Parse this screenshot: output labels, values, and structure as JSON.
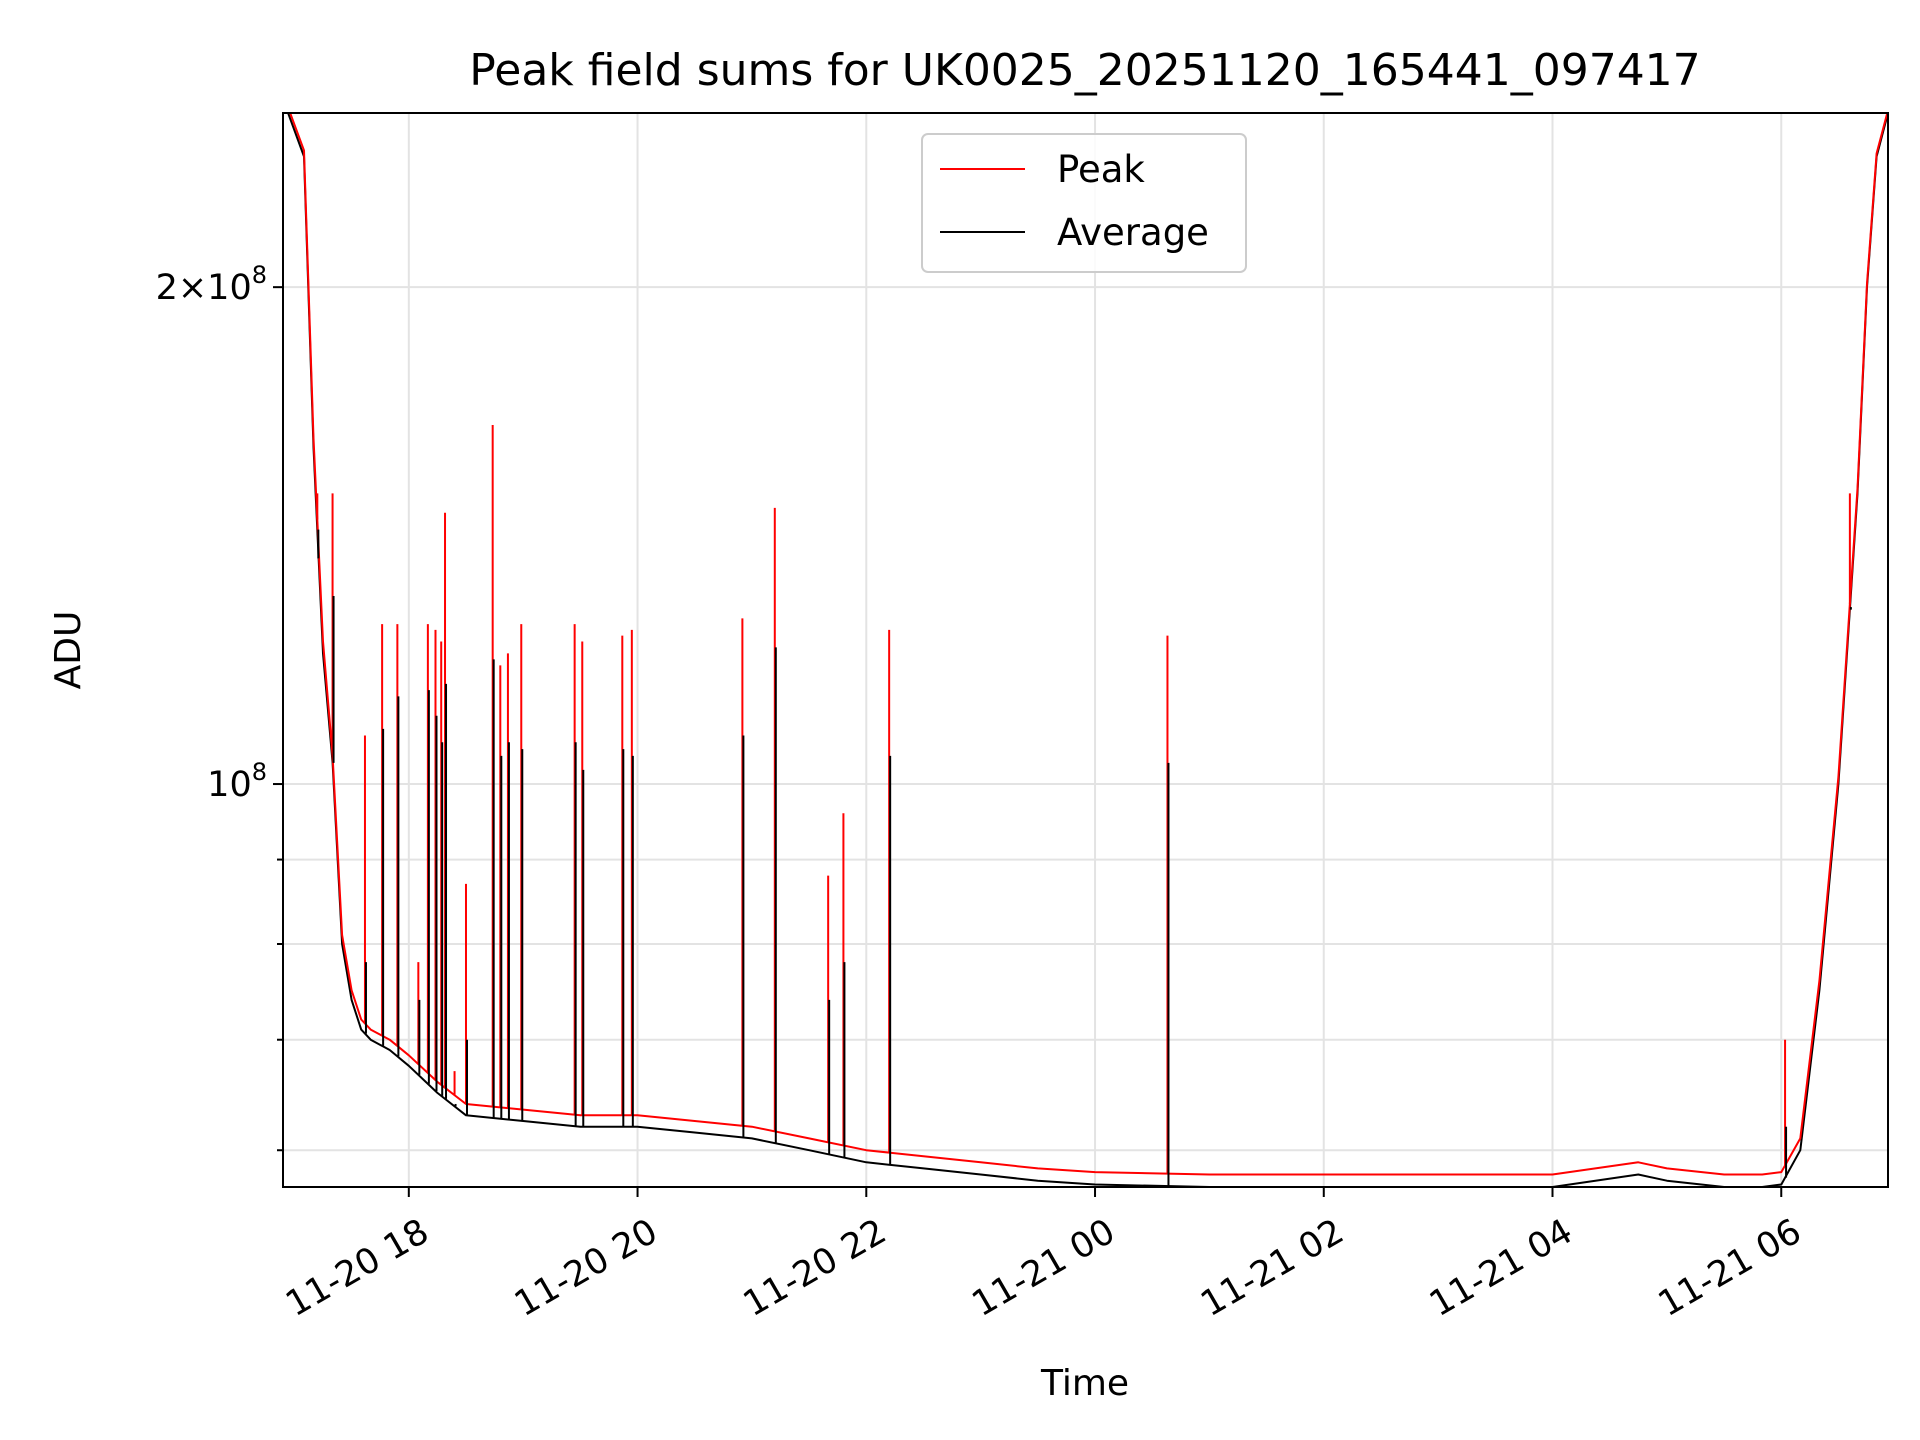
{
  "chart_data": {
    "type": "line",
    "title": "Peak field sums for UK0025_20251120_165441_097417",
    "xlabel": "Time",
    "ylabel": "ADU",
    "yscale": "log",
    "xlim": [
      "2025-11-20T16:54",
      "2025-11-21T06:56"
    ],
    "ylim": [
      57000000,
      255000000
    ],
    "grid": true,
    "legend": {
      "placement": "upper center",
      "entries": [
        "Peak",
        "Average"
      ]
    },
    "colors": {
      "Peak": "#ff0000",
      "Average": "#000000"
    },
    "x_ticks": [
      {
        "t": "2025-11-20T18:00",
        "label": "11-20 18"
      },
      {
        "t": "2025-11-20T20:00",
        "label": "11-20 20"
      },
      {
        "t": "2025-11-20T22:00",
        "label": "11-20 22"
      },
      {
        "t": "2025-11-21T00:00",
        "label": "11-21 00"
      },
      {
        "t": "2025-11-21T02:00",
        "label": "11-21 02"
      },
      {
        "t": "2025-11-21T04:00",
        "label": "11-21 04"
      },
      {
        "t": "2025-11-21T06:00",
        "label": "11-21 06"
      }
    ],
    "y_ticks": [
      {
        "value": 100000000,
        "base": "10",
        "exp": "8",
        "coef": ""
      },
      {
        "value": 200000000,
        "base": "10",
        "exp": "8",
        "coef": "2"
      }
    ],
    "y_minor_ticks": [
      60000000,
      70000000,
      80000000,
      90000000
    ],
    "series": [
      {
        "name": "Average",
        "x": [
          "2025-11-20T16:54",
          "2025-11-20T17:05",
          "2025-11-20T17:10",
          "2025-11-20T17:15",
          "2025-11-20T17:20",
          "2025-11-20T17:25",
          "2025-11-20T17:30",
          "2025-11-20T17:35",
          "2025-11-20T17:40",
          "2025-11-20T17:50",
          "2025-11-20T18:00",
          "2025-11-20T18:15",
          "2025-11-20T18:30",
          "2025-11-20T19:00",
          "2025-11-20T19:30",
          "2025-11-20T20:00",
          "2025-11-20T20:30",
          "2025-11-20T21:00",
          "2025-11-20T21:30",
          "2025-11-20T22:00",
          "2025-11-20T22:30",
          "2025-11-20T23:00",
          "2025-11-20T23:30",
          "2025-11-21T00:00",
          "2025-11-21T01:00",
          "2025-11-21T02:00",
          "2025-11-21T03:00",
          "2025-11-21T04:00",
          "2025-11-21T04:45",
          "2025-11-21T05:00",
          "2025-11-21T05:30",
          "2025-11-21T05:50",
          "2025-11-21T06:00",
          "2025-11-21T06:10",
          "2025-11-21T06:20",
          "2025-11-21T06:30",
          "2025-11-21T06:40",
          "2025-11-21T06:45",
          "2025-11-21T06:50",
          "2025-11-21T06:56"
        ],
        "y": [
          260000000,
          240000000,
          160000000,
          120000000,
          103000000,
          80000000,
          74000000,
          71000000,
          70000000,
          69000000,
          67500000,
          65000000,
          63000000,
          62500000,
          62000000,
          62000000,
          61500000,
          61000000,
          60000000,
          59000000,
          58500000,
          58000000,
          57500000,
          57200000,
          57000000,
          57000000,
          57000000,
          57000000,
          58000000,
          57500000,
          57000000,
          57000000,
          57200000,
          60000000,
          75000000,
          100000000,
          150000000,
          200000000,
          240000000,
          255000000
        ]
      },
      {
        "name": "Peak",
        "x": [
          "2025-11-20T16:54",
          "2025-11-20T17:05",
          "2025-11-20T17:10",
          "2025-11-20T17:15",
          "2025-11-20T17:20",
          "2025-11-20T17:25",
          "2025-11-20T17:30",
          "2025-11-20T17:35",
          "2025-11-20T17:40",
          "2025-11-20T17:50",
          "2025-11-20T18:00",
          "2025-11-20T18:15",
          "2025-11-20T18:30",
          "2025-11-20T19:00",
          "2025-11-20T19:30",
          "2025-11-20T20:00",
          "2025-11-20T20:30",
          "2025-11-20T21:00",
          "2025-11-20T21:30",
          "2025-11-20T22:00",
          "2025-11-20T22:30",
          "2025-11-20T23:00",
          "2025-11-20T23:30",
          "2025-11-21T00:00",
          "2025-11-21T01:00",
          "2025-11-21T02:00",
          "2025-11-21T03:00",
          "2025-11-21T04:00",
          "2025-11-21T04:45",
          "2025-11-21T05:00",
          "2025-11-21T05:30",
          "2025-11-21T05:50",
          "2025-11-21T06:00",
          "2025-11-21T06:10",
          "2025-11-21T06:20",
          "2025-11-21T06:30",
          "2025-11-21T06:40",
          "2025-11-21T06:45",
          "2025-11-21T06:50",
          "2025-11-21T06:56"
        ],
        "y": [
          262000000,
          242000000,
          162000000,
          122000000,
          104000000,
          81000000,
          75000000,
          72000000,
          71000000,
          70000000,
          68500000,
          66000000,
          64000000,
          63500000,
          63000000,
          63000000,
          62500000,
          62000000,
          61000000,
          60000000,
          59500000,
          59000000,
          58500000,
          58200000,
          58000000,
          58000000,
          58000000,
          58000000,
          59000000,
          58500000,
          58000000,
          58000000,
          58200000,
          61000000,
          76000000,
          101000000,
          151000000,
          201000000,
          241000000,
          256000000
        ]
      }
    ],
    "spikes": [
      {
        "t": "2025-11-20T17:12",
        "peak": 150000000,
        "avg": 137000000
      },
      {
        "t": "2025-11-20T17:20",
        "peak": 150000000,
        "avg": 130000000
      },
      {
        "t": "2025-11-20T17:37",
        "peak": 107000000,
        "avg": 78000000
      },
      {
        "t": "2025-11-20T17:46",
        "peak": 125000000,
        "avg": 108000000
      },
      {
        "t": "2025-11-20T17:54",
        "peak": 125000000,
        "avg": 113000000
      },
      {
        "t": "2025-11-20T18:05",
        "peak": 78000000,
        "avg": 74000000
      },
      {
        "t": "2025-11-20T18:10",
        "peak": 125000000,
        "avg": 114000000
      },
      {
        "t": "2025-11-20T18:14",
        "peak": 124000000,
        "avg": 110000000
      },
      {
        "t": "2025-11-20T18:17",
        "peak": 122000000,
        "avg": 106000000
      },
      {
        "t": "2025-11-20T18:19",
        "peak": 146000000,
        "avg": 115000000
      },
      {
        "t": "2025-11-20T18:24",
        "peak": 67000000,
        "avg": 64000000
      },
      {
        "t": "2025-11-20T18:30",
        "peak": 87000000,
        "avg": 70000000
      },
      {
        "t": "2025-11-20T18:44",
        "peak": 165000000,
        "avg": 119000000
      },
      {
        "t": "2025-11-20T18:48",
        "peak": 118000000,
        "avg": 104000000
      },
      {
        "t": "2025-11-20T18:52",
        "peak": 120000000,
        "avg": 106000000
      },
      {
        "t": "2025-11-20T18:59",
        "peak": 125000000,
        "avg": 105000000
      },
      {
        "t": "2025-11-20T19:27",
        "peak": 125000000,
        "avg": 106000000
      },
      {
        "t": "2025-11-20T19:31",
        "peak": 122000000,
        "avg": 102000000
      },
      {
        "t": "2025-11-20T19:52",
        "peak": 123000000,
        "avg": 105000000
      },
      {
        "t": "2025-11-20T19:57",
        "peak": 124000000,
        "avg": 104000000
      },
      {
        "t": "2025-11-20T20:55",
        "peak": 126000000,
        "avg": 107000000
      },
      {
        "t": "2025-11-20T21:12",
        "peak": 147000000,
        "avg": 121000000
      },
      {
        "t": "2025-11-20T21:40",
        "peak": 88000000,
        "avg": 74000000
      },
      {
        "t": "2025-11-20T21:48",
        "peak": 96000000,
        "avg": 78000000
      },
      {
        "t": "2025-11-20T22:12",
        "peak": 124000000,
        "avg": 104000000
      },
      {
        "t": "2025-11-21T00:38",
        "peak": 123000000,
        "avg": 103000000
      },
      {
        "t": "2025-11-21T06:02",
        "peak": 70000000,
        "avg": 62000000
      },
      {
        "t": "2025-11-21T06:36",
        "peak": 150000000,
        "avg": 128000000
      }
    ]
  }
}
